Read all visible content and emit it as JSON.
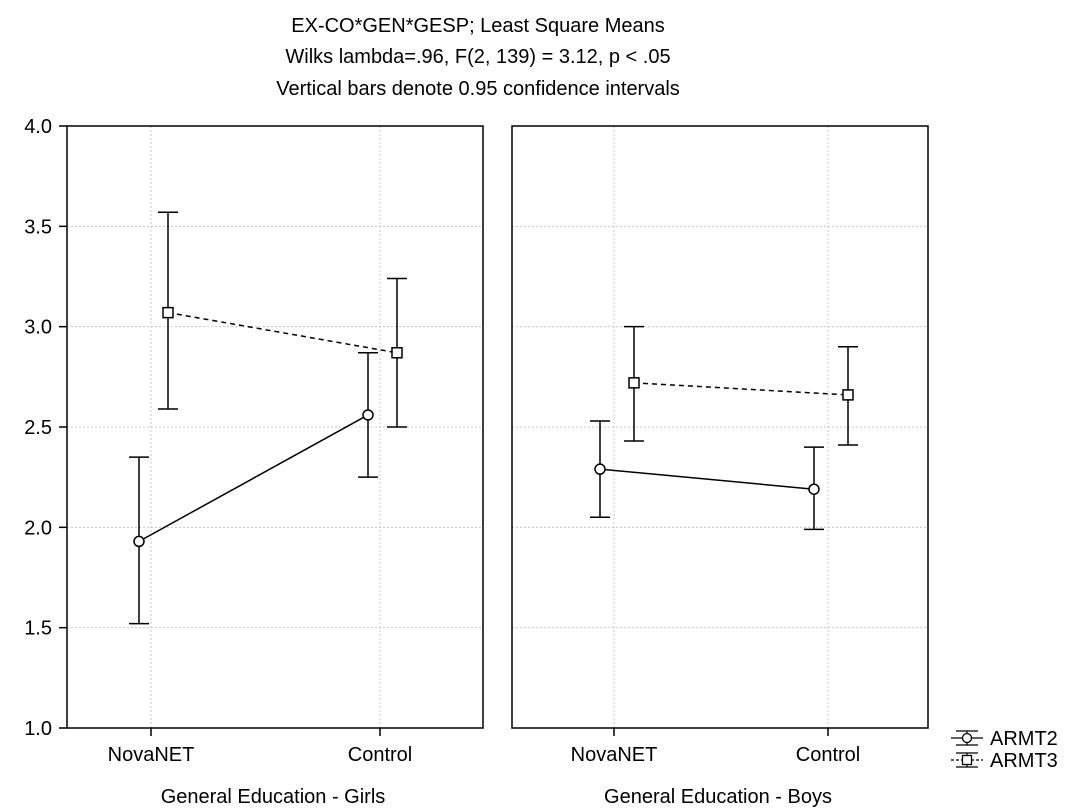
{
  "title_lines": [
    "EX-CO*GEN*GESP; Least Square Means",
    "Wilks lambda=.96, F(2, 139) = 3.12, p < .05",
    "Vertical bars denote 0.95 confidence intervals"
  ],
  "chart_data": {
    "type": "line",
    "ylim": [
      1.0,
      4.0
    ],
    "yticks": [
      "1.0",
      "1.5",
      "2.0",
      "2.5",
      "3.0",
      "3.5",
      "4.0"
    ],
    "categories": [
      "NovaNET",
      "Control"
    ],
    "grid": true,
    "legend_position": "bottom-right",
    "series_names": [
      "ARMT2",
      "ARMT3"
    ],
    "panels": [
      {
        "label": "General Education - Girls",
        "series": [
          {
            "name": "ARMT2",
            "marker": "circle",
            "line": "solid",
            "values": [
              1.93,
              2.56
            ],
            "lower": [
              1.52,
              2.25
            ],
            "upper": [
              2.35,
              2.87
            ]
          },
          {
            "name": "ARMT3",
            "marker": "square",
            "line": "dashed",
            "values": [
              3.07,
              2.87
            ],
            "lower": [
              2.59,
              2.5
            ],
            "upper": [
              3.57,
              3.24
            ]
          }
        ]
      },
      {
        "label": "General Education - Boys",
        "series": [
          {
            "name": "ARMT2",
            "marker": "circle",
            "line": "solid",
            "values": [
              2.29,
              2.19
            ],
            "lower": [
              2.05,
              1.99
            ],
            "upper": [
              2.53,
              2.4
            ]
          },
          {
            "name": "ARMT3",
            "marker": "square",
            "line": "dashed",
            "values": [
              2.72,
              2.66
            ],
            "lower": [
              2.43,
              2.41
            ],
            "upper": [
              3.0,
              2.9
            ]
          }
        ]
      }
    ]
  }
}
